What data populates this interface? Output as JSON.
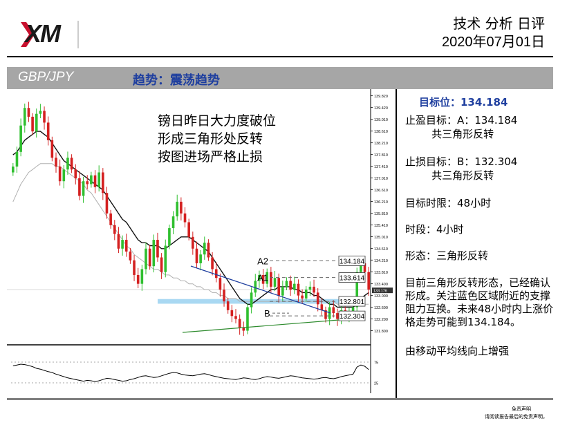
{
  "brand": {
    "logo_text": "XM"
  },
  "header": {
    "title": "技术 分析 日评",
    "date": "2020年07月01日"
  },
  "band": {
    "pair": "GBP/JPY",
    "trend": "趋势：震荡趋势"
  },
  "chart_note": [
    "镑日昨日大力度破位",
    "形成三角形处反转",
    "按图进场严格止损"
  ],
  "panel": {
    "target_title": "目标位：134.184",
    "take_profit_line1": "止盈目标：A：134.184",
    "take_profit_line2": "        共三角形反转",
    "stop_loss_line1": "止损目标：B：132.304",
    "stop_loss_line2": "        共三角形反转",
    "target_time": "目标时限：48小时",
    "period": "时段：4小时",
    "pattern": "形态：三角形反转",
    "description": "目前三角形反转形态，已经确认形成。关注蓝色区域附近的支撑阻力互换。未来48小时内上涨价格走势可能到134.184。",
    "ma_note": "由移动平均线向上增强"
  },
  "footer": {
    "line1": "免责声明",
    "line2": "请阅读报告最后的免责声明。"
  },
  "chart_data": {
    "type": "candlestick",
    "title": "",
    "xlabel": "",
    "ylabel": "",
    "ylim": [
      131.6,
      139.9
    ],
    "y_ticks": [
      "139.820",
      "139.420",
      "139.010",
      "138.610",
      "138.210",
      "137.810",
      "137.410",
      "137.010",
      "136.610",
      "136.210",
      "135.810",
      "135.410",
      "135.010",
      "134.610",
      "134.210",
      "133.810",
      "133.400",
      "133.000",
      "132.600",
      "132.200",
      "131.800"
    ],
    "last_price_label": "133.176",
    "candles_close": [
      137.4,
      137.9,
      138.8,
      139.4,
      139.1,
      138.6,
      139.2,
      139.3,
      138.9,
      138.3,
      137.7,
      137.4,
      136.9,
      137.3,
      137.7,
      137.3,
      137.0,
      136.4,
      136.9,
      136.8,
      137.1,
      136.7,
      137.2,
      136.5,
      135.8,
      135.4,
      135.1,
      134.6,
      134.9,
      134.5,
      134.2,
      133.7,
      133.4,
      133.9,
      134.6,
      134.0,
      134.9,
      134.3,
      133.8,
      134.7,
      135.3,
      135.7,
      136.2,
      135.8,
      135.5,
      135.0,
      134.6,
      134.1,
      134.4,
      134.8,
      134.3,
      133.9,
      133.6,
      133.2,
      132.8,
      132.5,
      132.3,
      132.2,
      131.9,
      131.8,
      132.6,
      133.1,
      133.5,
      133.7,
      133.4,
      133.8,
      133.3,
      133.6,
      133.0,
      133.3,
      133.5,
      133.2,
      133.4,
      133.0,
      132.9,
      133.2,
      133.3,
      133.1,
      132.7,
      132.5,
      132.2,
      132.6,
      132.4,
      132.2,
      132.5,
      132.3,
      132.4,
      132.6,
      133.8,
      134.1,
      133.8,
      133.2
    ],
    "ma_fast_close": [
      137.8,
      137.9,
      138.1,
      138.3,
      138.4,
      138.5,
      138.6,
      138.6,
      138.5,
      138.4,
      138.2,
      138.0,
      137.8,
      137.6,
      137.5,
      137.4,
      137.3,
      137.2,
      137.1,
      137.0,
      136.9,
      136.8,
      136.7,
      136.6,
      136.4,
      136.2,
      136.0,
      135.8,
      135.6,
      135.5,
      135.3,
      135.1,
      134.9,
      134.8,
      134.8,
      134.7,
      134.7,
      134.7,
      134.6,
      134.6,
      134.7,
      134.8,
      134.9,
      135.0,
      135.0,
      135.0,
      134.9,
      134.8,
      134.7,
      134.6,
      134.5,
      134.3,
      134.1,
      133.9,
      133.7,
      133.5,
      133.3,
      133.1,
      132.9,
      132.8,
      132.7,
      132.7,
      132.8,
      132.9,
      133.0,
      133.1,
      133.2,
      133.2,
      133.3,
      133.3,
      133.3,
      133.3,
      133.2,
      133.2,
      133.1,
      133.1,
      133.1,
      133.0,
      133.0,
      132.9,
      132.8,
      132.7,
      132.7,
      132.6,
      132.6,
      132.6,
      132.6,
      132.6,
      132.7,
      132.9,
      133.0,
      133.1
    ],
    "ma_slow_close": [
      136.2,
      136.5,
      136.8,
      137.0,
      137.2,
      137.3,
      137.4,
      137.5,
      137.5,
      137.5,
      137.5,
      137.4,
      137.4,
      137.3,
      137.2,
      137.1,
      137.0,
      136.9,
      136.8,
      136.6,
      136.5,
      136.3,
      136.1,
      135.9,
      135.7,
      135.5,
      135.3,
      135.1,
      134.9,
      134.7,
      134.6,
      134.4,
      134.3,
      134.2,
      134.1,
      134.0,
      133.9,
      133.9,
      133.8,
      133.7,
      133.7,
      133.6,
      133.6,
      133.5,
      133.5,
      133.4,
      133.4,
      133.3,
      133.3,
      133.2,
      133.2,
      133.1,
      133.1,
      133.0,
      133.0,
      132.9,
      132.9,
      132.9,
      132.8,
      132.8,
      132.8,
      132.8,
      132.8,
      132.8,
      132.8,
      132.8,
      132.8,
      132.8,
      132.8,
      132.8,
      132.8,
      132.8,
      132.8,
      132.8,
      132.8,
      132.8,
      132.8,
      132.8,
      132.8,
      132.8,
      132.8,
      132.8,
      132.8,
      132.7,
      132.7,
      132.7,
      132.7,
      132.7,
      132.7,
      132.7,
      132.7,
      132.7
    ],
    "levels": [
      {
        "label": "134.184",
        "value": 134.184,
        "marker": "A2"
      },
      {
        "label": "133.614",
        "value": 133.614,
        "marker": "A1"
      },
      {
        "label": "132.801",
        "value": 132.801,
        "marker": ""
      },
      {
        "label": "132.304",
        "value": 132.304,
        "marker": ""
      }
    ],
    "support_zone": [
      132.72,
      132.88
    ],
    "point_marker": {
      "label": "B",
      "value": 132.304
    },
    "oscillator": {
      "ticks": [
        "75",
        "25"
      ],
      "values": [
        66,
        68,
        70,
        69,
        67,
        64,
        60,
        58,
        55,
        52,
        50,
        46,
        43,
        40,
        37,
        35,
        33,
        31,
        29,
        31,
        30,
        28,
        30,
        33,
        36,
        35,
        33,
        31,
        29,
        30,
        33,
        35,
        38,
        41,
        42,
        40,
        38,
        39,
        42,
        45,
        48,
        50,
        49,
        46,
        44,
        43,
        42,
        44,
        46,
        47,
        45,
        42,
        40,
        38,
        36,
        35,
        34,
        33,
        35,
        37,
        36,
        34,
        33,
        35,
        38,
        40,
        39,
        37,
        36,
        38,
        40,
        42,
        41,
        39,
        37,
        36,
        35,
        34,
        35,
        37,
        38,
        36,
        35,
        37,
        40,
        42,
        44,
        46,
        63,
        68,
        65,
        57
      ]
    }
  }
}
